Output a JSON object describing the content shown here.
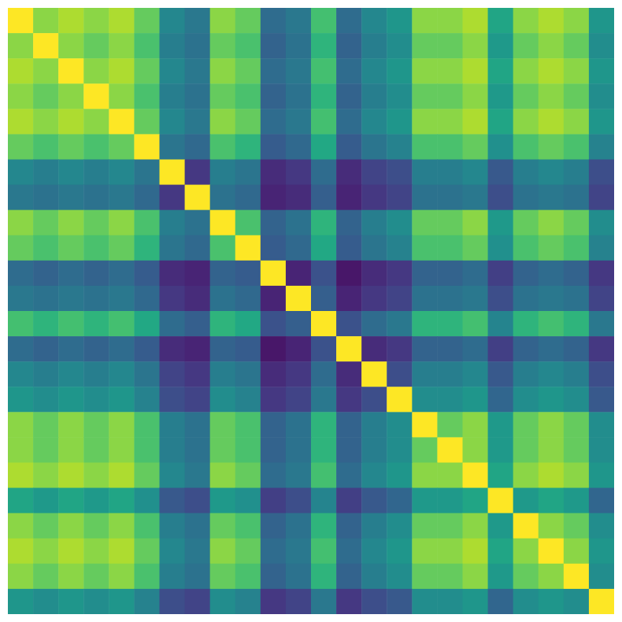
{
  "chart_data": {
    "type": "heatmap",
    "tick_labels": false,
    "zlim": [
      0.2,
      1
    ],
    "values": [
      [
        1,
        0.86,
        0.9,
        0.86,
        0.9,
        0.81,
        0.57,
        0.52,
        0.86,
        0.81,
        0.48,
        0.52,
        0.76,
        0.48,
        0.57,
        0.62,
        0.86,
        0.86,
        0.9,
        0.67,
        0.86,
        0.9,
        0.86,
        0.62
      ],
      [
        0.86,
        1,
        0.86,
        0.81,
        0.86,
        0.77,
        0.54,
        0.5,
        0.81,
        0.77,
        0.45,
        0.5,
        0.72,
        0.45,
        0.54,
        0.59,
        0.81,
        0.81,
        0.86,
        0.63,
        0.81,
        0.86,
        0.81,
        0.59
      ],
      [
        0.9,
        0.86,
        1,
        0.86,
        0.9,
        0.81,
        0.57,
        0.52,
        0.86,
        0.81,
        0.48,
        0.52,
        0.76,
        0.48,
        0.57,
        0.62,
        0.86,
        0.86,
        0.9,
        0.67,
        0.86,
        0.9,
        0.86,
        0.62
      ],
      [
        0.86,
        0.81,
        0.86,
        1,
        0.86,
        0.77,
        0.54,
        0.5,
        0.81,
        0.77,
        0.45,
        0.5,
        0.72,
        0.45,
        0.54,
        0.59,
        0.81,
        0.81,
        0.86,
        0.63,
        0.81,
        0.86,
        0.81,
        0.59
      ],
      [
        0.9,
        0.86,
        0.9,
        0.86,
        1,
        0.81,
        0.57,
        0.52,
        0.86,
        0.81,
        0.48,
        0.52,
        0.76,
        0.48,
        0.57,
        0.62,
        0.86,
        0.86,
        0.9,
        0.67,
        0.86,
        0.9,
        0.86,
        0.62
      ],
      [
        0.81,
        0.77,
        0.81,
        0.77,
        0.81,
        1,
        0.51,
        0.47,
        0.77,
        0.72,
        0.43,
        0.47,
        0.68,
        0.43,
        0.51,
        0.55,
        0.77,
        0.77,
        0.81,
        0.6,
        0.77,
        0.81,
        0.77,
        0.55
      ],
      [
        0.57,
        0.54,
        0.57,
        0.54,
        0.57,
        0.51,
        1,
        0.33,
        0.54,
        0.51,
        0.3,
        0.33,
        0.48,
        0.3,
        0.36,
        0.39,
        0.54,
        0.54,
        0.57,
        0.42,
        0.54,
        0.57,
        0.54,
        0.39
      ],
      [
        0.52,
        0.5,
        0.52,
        0.5,
        0.52,
        0.47,
        0.33,
        1,
        0.5,
        0.47,
        0.28,
        0.3,
        0.44,
        0.28,
        0.33,
        0.36,
        0.5,
        0.5,
        0.52,
        0.39,
        0.5,
        0.52,
        0.5,
        0.36
      ],
      [
        0.86,
        0.81,
        0.86,
        0.81,
        0.86,
        0.77,
        0.54,
        0.5,
        1,
        0.77,
        0.45,
        0.5,
        0.72,
        0.45,
        0.54,
        0.59,
        0.81,
        0.81,
        0.86,
        0.63,
        0.81,
        0.86,
        0.81,
        0.59
      ],
      [
        0.81,
        0.77,
        0.81,
        0.77,
        0.81,
        0.72,
        0.51,
        0.47,
        0.77,
        1,
        0.43,
        0.47,
        0.68,
        0.43,
        0.51,
        0.55,
        0.77,
        0.77,
        0.81,
        0.6,
        0.77,
        0.81,
        0.77,
        0.55
      ],
      [
        0.48,
        0.45,
        0.48,
        0.45,
        0.48,
        0.43,
        0.3,
        0.28,
        0.45,
        0.43,
        1,
        0.28,
        0.4,
        0.25,
        0.3,
        0.33,
        0.45,
        0.45,
        0.48,
        0.35,
        0.45,
        0.48,
        0.45,
        0.33
      ],
      [
        0.52,
        0.5,
        0.52,
        0.5,
        0.52,
        0.47,
        0.33,
        0.3,
        0.5,
        0.47,
        0.28,
        1,
        0.44,
        0.28,
        0.33,
        0.36,
        0.5,
        0.5,
        0.52,
        0.39,
        0.5,
        0.52,
        0.5,
        0.36
      ],
      [
        0.76,
        0.72,
        0.76,
        0.72,
        0.76,
        0.68,
        0.48,
        0.44,
        0.72,
        0.68,
        0.4,
        0.44,
        1,
        0.4,
        0.48,
        0.52,
        0.72,
        0.72,
        0.76,
        0.56,
        0.72,
        0.76,
        0.72,
        0.52
      ],
      [
        0.48,
        0.45,
        0.48,
        0.45,
        0.48,
        0.43,
        0.3,
        0.28,
        0.45,
        0.43,
        0.25,
        0.28,
        0.4,
        1,
        0.3,
        0.33,
        0.45,
        0.45,
        0.48,
        0.35,
        0.45,
        0.48,
        0.45,
        0.33
      ],
      [
        0.57,
        0.54,
        0.57,
        0.54,
        0.57,
        0.51,
        0.36,
        0.33,
        0.54,
        0.51,
        0.3,
        0.33,
        0.48,
        0.3,
        1,
        0.39,
        0.54,
        0.54,
        0.57,
        0.42,
        0.54,
        0.57,
        0.54,
        0.39
      ],
      [
        0.62,
        0.59,
        0.62,
        0.59,
        0.62,
        0.55,
        0.39,
        0.36,
        0.59,
        0.55,
        0.33,
        0.36,
        0.52,
        0.33,
        0.39,
        1,
        0.59,
        0.59,
        0.62,
        0.46,
        0.59,
        0.62,
        0.59,
        0.42
      ],
      [
        0.86,
        0.81,
        0.86,
        0.81,
        0.86,
        0.77,
        0.54,
        0.5,
        0.81,
        0.77,
        0.45,
        0.5,
        0.72,
        0.45,
        0.54,
        0.59,
        1,
        0.81,
        0.86,
        0.63,
        0.81,
        0.86,
        0.81,
        0.59
      ],
      [
        0.86,
        0.81,
        0.86,
        0.81,
        0.86,
        0.77,
        0.54,
        0.5,
        0.81,
        0.77,
        0.45,
        0.5,
        0.72,
        0.45,
        0.54,
        0.59,
        0.81,
        1,
        0.86,
        0.63,
        0.81,
        0.86,
        0.81,
        0.59
      ],
      [
        0.9,
        0.86,
        0.9,
        0.86,
        0.9,
        0.81,
        0.57,
        0.52,
        0.86,
        0.81,
        0.48,
        0.52,
        0.76,
        0.48,
        0.57,
        0.62,
        0.86,
        0.86,
        1,
        0.67,
        0.86,
        0.9,
        0.86,
        0.62
      ],
      [
        0.67,
        0.63,
        0.67,
        0.63,
        0.67,
        0.6,
        0.42,
        0.39,
        0.63,
        0.6,
        0.35,
        0.39,
        0.56,
        0.35,
        0.42,
        0.46,
        0.63,
        0.63,
        0.67,
        1,
        0.63,
        0.67,
        0.63,
        0.46
      ],
      [
        0.86,
        0.81,
        0.86,
        0.81,
        0.86,
        0.77,
        0.54,
        0.5,
        0.81,
        0.77,
        0.45,
        0.5,
        0.72,
        0.45,
        0.54,
        0.59,
        0.81,
        0.81,
        0.86,
        0.63,
        1,
        0.86,
        0.81,
        0.59
      ],
      [
        0.9,
        0.86,
        0.9,
        0.86,
        0.9,
        0.81,
        0.57,
        0.52,
        0.86,
        0.81,
        0.48,
        0.52,
        0.76,
        0.48,
        0.57,
        0.62,
        0.86,
        0.86,
        0.9,
        0.67,
        0.86,
        1,
        0.86,
        0.62
      ],
      [
        0.86,
        0.81,
        0.86,
        0.81,
        0.86,
        0.77,
        0.54,
        0.5,
        0.81,
        0.77,
        0.45,
        0.5,
        0.72,
        0.45,
        0.54,
        0.59,
        0.81,
        0.81,
        0.86,
        0.63,
        0.81,
        0.86,
        1,
        0.59
      ],
      [
        0.62,
        0.59,
        0.62,
        0.59,
        0.62,
        0.55,
        0.39,
        0.36,
        0.59,
        0.55,
        0.33,
        0.36,
        0.52,
        0.33,
        0.39,
        0.42,
        0.59,
        0.59,
        0.62,
        0.46,
        0.59,
        0.62,
        0.59,
        1
      ]
    ]
  }
}
